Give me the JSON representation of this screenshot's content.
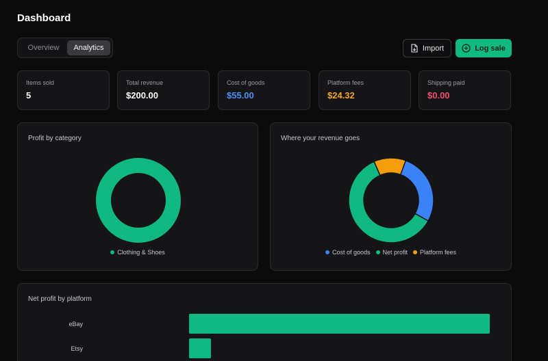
{
  "header": {
    "title": "Dashboard"
  },
  "tabs": [
    {
      "label": "Overview",
      "active": false
    },
    {
      "label": "Analytics",
      "active": true
    }
  ],
  "actions": {
    "import_label": "Import",
    "log_sale_label": "Log sale"
  },
  "stats": [
    {
      "label": "Items sold",
      "value": "5",
      "color": "#ffffff"
    },
    {
      "label": "Total revenue",
      "value": "$200.00",
      "color": "#ffffff"
    },
    {
      "label": "Cost of goods",
      "value": "$55.00",
      "color": "#4f8ef7"
    },
    {
      "label": "Platform fees",
      "value": "$24.32",
      "color": "#f5a524"
    },
    {
      "label": "Shipping paid",
      "value": "$0.00",
      "color": "#f0506e"
    }
  ],
  "profit_by_category": {
    "title": "Profit by category",
    "slices": [
      {
        "label": "Clothing & Shoes",
        "value": 100,
        "color": "#10b981"
      }
    ]
  },
  "revenue_breakdown": {
    "title": "Where your revenue goes",
    "slices": [
      {
        "label": "Cost of goods",
        "value": 55.0,
        "color": "#3b82f6"
      },
      {
        "label": "Net profit",
        "value": 120.68,
        "color": "#10b981"
      },
      {
        "label": "Platform fees",
        "value": 24.32,
        "color": "#f59e0b"
      }
    ]
  },
  "net_profit_by_platform": {
    "title": "Net profit by platform",
    "platforms": [
      {
        "label": "eBay",
        "value": 100
      },
      {
        "label": "Etsy",
        "value": 7.3
      }
    ],
    "color": "#10b981"
  }
}
